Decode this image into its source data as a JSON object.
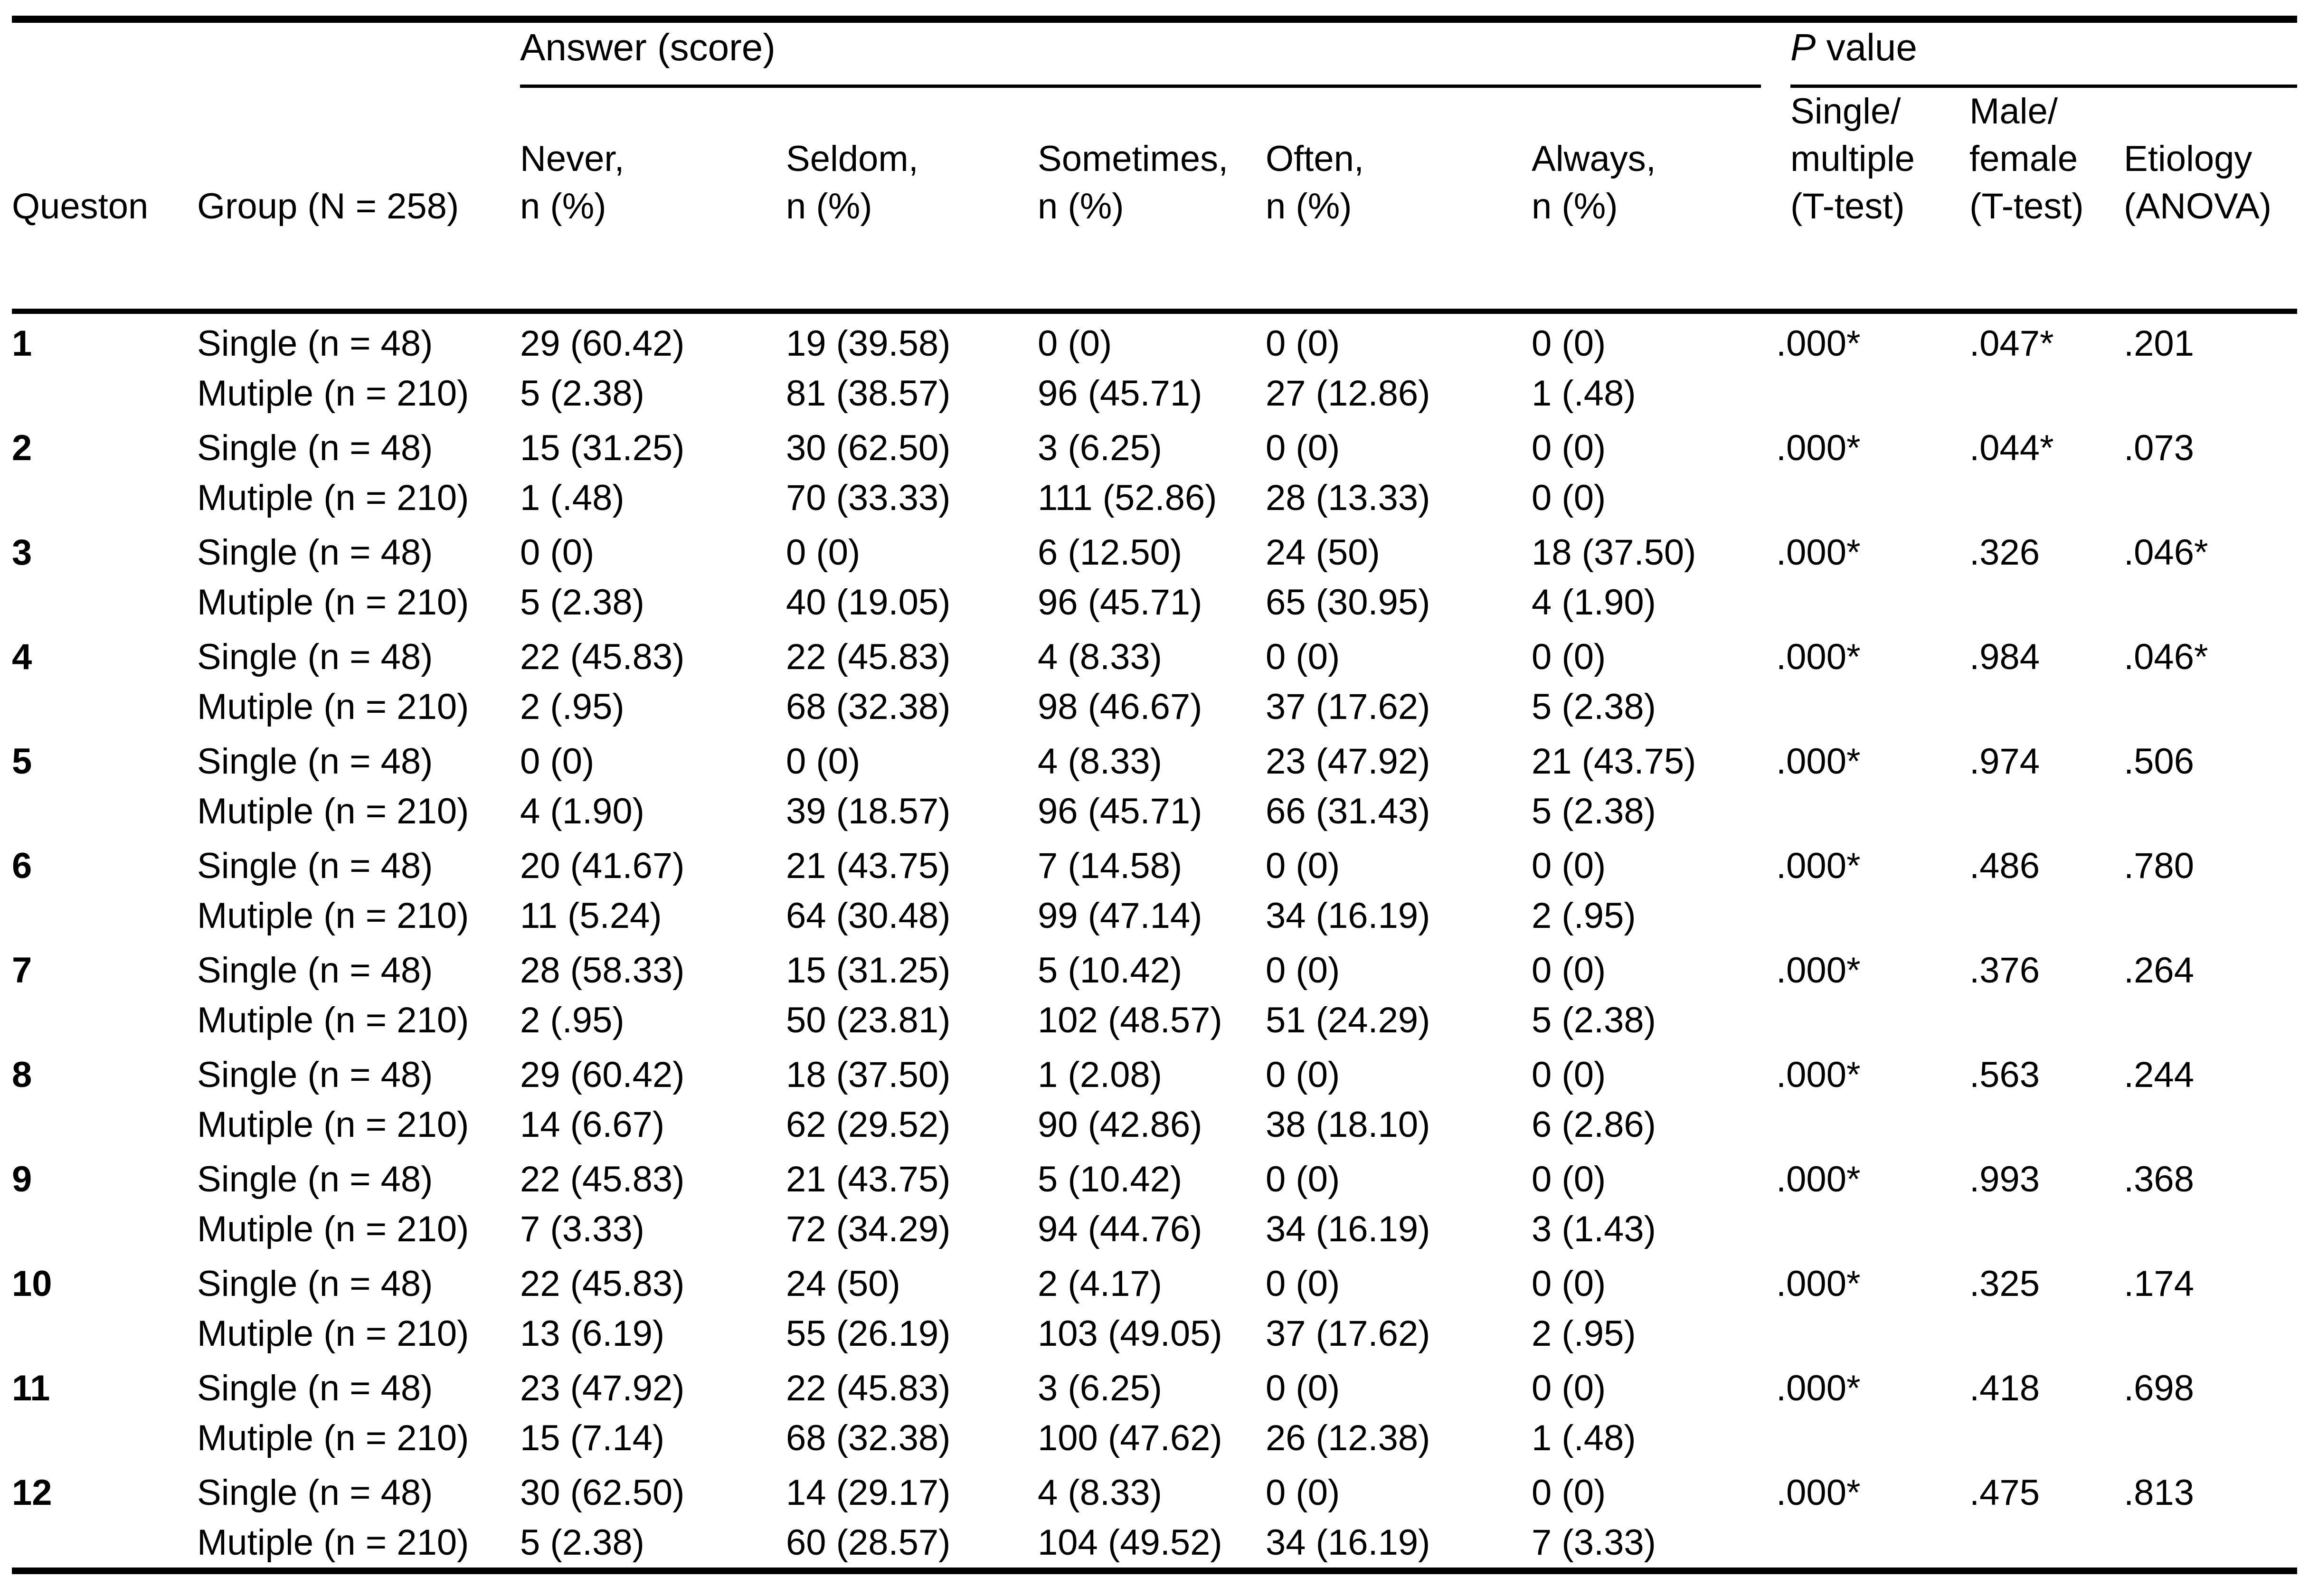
{
  "page": {
    "background": "#ffffff",
    "text_color": "#000000",
    "rule_color": "#000000"
  },
  "header": {
    "answer_span_label": "Answer (score)",
    "p_span_label_italic": "P",
    "p_span_label_rest": " value",
    "columns": [
      {
        "id": "queston",
        "lines": [
          "Queston"
        ]
      },
      {
        "id": "group",
        "lines": [
          "Group (N = 258)"
        ]
      },
      {
        "id": "never",
        "lines": [
          "Never,",
          "n (%)"
        ]
      },
      {
        "id": "seldom",
        "lines": [
          "Seldom,",
          "n (%)"
        ]
      },
      {
        "id": "sometimes",
        "lines": [
          "Sometimes,",
          "n (%)"
        ]
      },
      {
        "id": "often",
        "lines": [
          "Often,",
          "n (%)"
        ]
      },
      {
        "id": "always",
        "lines": [
          "Always,",
          "n (%)"
        ]
      },
      {
        "id": "p_single_multiple",
        "lines": [
          "Single/",
          "multiple",
          "(T-test)"
        ]
      },
      {
        "id": "p_male_female",
        "lines": [
          "Male/",
          "female",
          "(T-test)"
        ]
      },
      {
        "id": "p_etiology",
        "lines": [
          "Etiology",
          "(ANOVA)"
        ]
      }
    ]
  },
  "rows": [
    {
      "q": "1",
      "single": {
        "label": "Single (n = 48)",
        "never": "29 (60.42)",
        "seldom": "19 (39.58)",
        "sometimes": "0 (0)",
        "often": "0 (0)",
        "always": "0 (0)"
      },
      "multiple": {
        "label": "Mutiple (n = 210)",
        "never": "5 (2.38)",
        "seldom": "81 (38.57)",
        "sometimes": "96 (45.71)",
        "often": "27 (12.86)",
        "always": "1 (.48)"
      },
      "p": [
        ".000*",
        ".047*",
        ".201"
      ]
    },
    {
      "q": "2",
      "single": {
        "label": "Single (n = 48)",
        "never": "15 (31.25)",
        "seldom": "30 (62.50)",
        "sometimes": "3 (6.25)",
        "often": "0 (0)",
        "always": "0 (0)"
      },
      "multiple": {
        "label": "Mutiple (n = 210)",
        "never": "1 (.48)",
        "seldom": "70 (33.33)",
        "sometimes": "111 (52.86)",
        "often": "28 (13.33)",
        "always": "0 (0)"
      },
      "p": [
        ".000*",
        ".044*",
        ".073"
      ]
    },
    {
      "q": "3",
      "single": {
        "label": "Single (n = 48)",
        "never": "0 (0)",
        "seldom": "0 (0)",
        "sometimes": "6 (12.50)",
        "often": "24 (50)",
        "always": "18 (37.50)"
      },
      "multiple": {
        "label": "Mutiple (n = 210)",
        "never": "5 (2.38)",
        "seldom": "40 (19.05)",
        "sometimes": "96 (45.71)",
        "often": "65 (30.95)",
        "always": "4 (1.90)"
      },
      "p": [
        ".000*",
        ".326",
        ".046*"
      ]
    },
    {
      "q": "4",
      "single": {
        "label": "Single (n = 48)",
        "never": "22 (45.83)",
        "seldom": "22 (45.83)",
        "sometimes": "4 (8.33)",
        "often": "0 (0)",
        "always": "0 (0)"
      },
      "multiple": {
        "label": "Mutiple (n = 210)",
        "never": "2 (.95)",
        "seldom": "68 (32.38)",
        "sometimes": "98 (46.67)",
        "often": "37 (17.62)",
        "always": "5 (2.38)"
      },
      "p": [
        ".000*",
        ".984",
        ".046*"
      ]
    },
    {
      "q": "5",
      "single": {
        "label": "Single (n = 48)",
        "never": "0 (0)",
        "seldom": "0 (0)",
        "sometimes": "4 (8.33)",
        "often": "23 (47.92)",
        "always": "21 (43.75)"
      },
      "multiple": {
        "label": "Mutiple (n = 210)",
        "never": "4 (1.90)",
        "seldom": "39 (18.57)",
        "sometimes": "96 (45.71)",
        "often": "66 (31.43)",
        "always": "5 (2.38)"
      },
      "p": [
        ".000*",
        ".974",
        ".506"
      ]
    },
    {
      "q": "6",
      "single": {
        "label": "Single (n = 48)",
        "never": "20 (41.67)",
        "seldom": "21 (43.75)",
        "sometimes": "7 (14.58)",
        "often": "0 (0)",
        "always": "0 (0)"
      },
      "multiple": {
        "label": "Mutiple (n = 210)",
        "never": "11 (5.24)",
        "seldom": "64 (30.48)",
        "sometimes": "99 (47.14)",
        "often": "34 (16.19)",
        "always": "2 (.95)"
      },
      "p": [
        ".000*",
        ".486",
        ".780"
      ]
    },
    {
      "q": "7",
      "single": {
        "label": "Single (n = 48)",
        "never": "28 (58.33)",
        "seldom": "15 (31.25)",
        "sometimes": "5 (10.42)",
        "often": "0 (0)",
        "always": "0 (0)"
      },
      "multiple": {
        "label": "Mutiple (n = 210)",
        "never": "2 (.95)",
        "seldom": "50 (23.81)",
        "sometimes": "102 (48.57)",
        "often": "51 (24.29)",
        "always": "5 (2.38)"
      },
      "p": [
        ".000*",
        ".376",
        ".264"
      ]
    },
    {
      "q": "8",
      "single": {
        "label": "Single (n = 48)",
        "never": "29 (60.42)",
        "seldom": "18 (37.50)",
        "sometimes": "1 (2.08)",
        "often": "0 (0)",
        "always": "0 (0)"
      },
      "multiple": {
        "label": "Mutiple (n = 210)",
        "never": "14 (6.67)",
        "seldom": "62 (29.52)",
        "sometimes": "90 (42.86)",
        "often": "38 (18.10)",
        "always": "6 (2.86)"
      },
      "p": [
        ".000*",
        ".563",
        ".244"
      ]
    },
    {
      "q": "9",
      "single": {
        "label": "Single (n = 48)",
        "never": "22 (45.83)",
        "seldom": "21 (43.75)",
        "sometimes": "5 (10.42)",
        "often": "0 (0)",
        "always": "0 (0)"
      },
      "multiple": {
        "label": "Mutiple (n = 210)",
        "never": "7 (3.33)",
        "seldom": "72 (34.29)",
        "sometimes": "94 (44.76)",
        "often": "34 (16.19)",
        "always": "3 (1.43)"
      },
      "p": [
        ".000*",
        ".993",
        ".368"
      ]
    },
    {
      "q": "10",
      "single": {
        "label": "Single (n = 48)",
        "never": "22 (45.83)",
        "seldom": "24 (50)",
        "sometimes": "2 (4.17)",
        "often": "0 (0)",
        "always": "0 (0)"
      },
      "multiple": {
        "label": "Mutiple (n = 210)",
        "never": "13 (6.19)",
        "seldom": "55 (26.19)",
        "sometimes": "103 (49.05)",
        "often": "37 (17.62)",
        "always": "2 (.95)"
      },
      "p": [
        ".000*",
        ".325",
        ".174"
      ]
    },
    {
      "q": "11",
      "single": {
        "label": "Single (n = 48)",
        "never": "23 (47.92)",
        "seldom": "22 (45.83)",
        "sometimes": "3 (6.25)",
        "often": "0 (0)",
        "always": "0 (0)"
      },
      "multiple": {
        "label": "Mutiple (n = 210)",
        "never": "15 (7.14)",
        "seldom": "68 (32.38)",
        "sometimes": "100 (47.62)",
        "often": "26 (12.38)",
        "always": "1 (.48)"
      },
      "p": [
        ".000*",
        ".418",
        ".698"
      ]
    },
    {
      "q": "12",
      "single": {
        "label": "Single (n = 48)",
        "never": "30 (62.50)",
        "seldom": "14 (29.17)",
        "sometimes": "4 (8.33)",
        "often": "0 (0)",
        "always": "0 (0)"
      },
      "multiple": {
        "label": "Mutiple (n = 210)",
        "never": "5 (2.38)",
        "seldom": "60 (28.57)",
        "sometimes": "104 (49.52)",
        "often": "34 (16.19)",
        "always": "7 (3.33)"
      },
      "p": [
        ".000*",
        ".475",
        ".813"
      ]
    }
  ]
}
